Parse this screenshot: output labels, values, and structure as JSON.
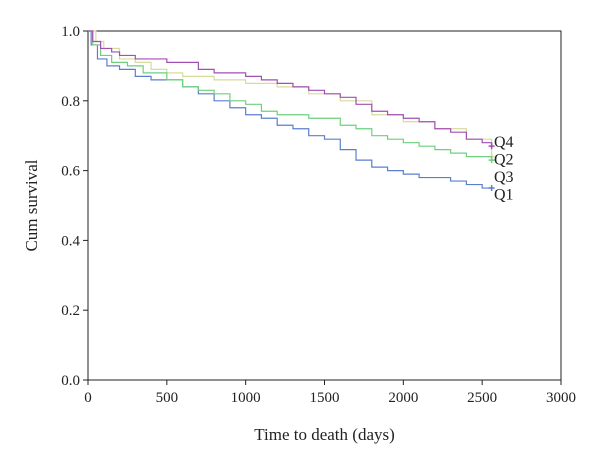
{
  "chart_data": {
    "type": "line",
    "xlabel": "Time to death (days)",
    "ylabel": "Cum survival",
    "xlim": [
      0,
      3000
    ],
    "ylim": [
      0,
      1.0
    ],
    "xticks": [
      0,
      500,
      1000,
      1500,
      2000,
      2500,
      3000
    ],
    "yticks": [
      0.0,
      0.2,
      0.4,
      0.6,
      0.8,
      1.0
    ],
    "xtick_labels": [
      "0",
      "500",
      "1000",
      "1500",
      "2000",
      "2500",
      "3000"
    ],
    "ytick_labels": [
      "0.0",
      "0.2",
      "0.4",
      "0.6",
      "0.8",
      "1.0"
    ],
    "grid": false,
    "series": [
      {
        "name": "Q1",
        "color": "#5b7fce",
        "x": [
          0,
          20,
          60,
          120,
          200,
          300,
          400,
          500,
          600,
          700,
          800,
          900,
          1000,
          1100,
          1200,
          1300,
          1400,
          1500,
          1600,
          1700,
          1800,
          1900,
          2000,
          2100,
          2200,
          2300,
          2400,
          2500,
          2560
        ],
        "y": [
          1.0,
          0.96,
          0.92,
          0.9,
          0.89,
          0.87,
          0.86,
          0.86,
          0.84,
          0.82,
          0.8,
          0.78,
          0.76,
          0.75,
          0.73,
          0.72,
          0.7,
          0.69,
          0.66,
          0.63,
          0.61,
          0.6,
          0.59,
          0.58,
          0.58,
          0.57,
          0.56,
          0.55,
          0.55
        ]
      },
      {
        "name": "Q2",
        "color": "#d6dc9e",
        "x": [
          0,
          50,
          100,
          200,
          300,
          400,
          500,
          600,
          800,
          1000,
          1200,
          1400,
          1600,
          1800,
          2000,
          2200,
          2400,
          2560
        ],
        "y": [
          1.0,
          0.97,
          0.95,
          0.92,
          0.91,
          0.89,
          0.88,
          0.87,
          0.86,
          0.85,
          0.84,
          0.82,
          0.8,
          0.76,
          0.74,
          0.72,
          0.69,
          0.64
        ]
      },
      {
        "name": "Q3",
        "color": "#6fcf7f",
        "x": [
          0,
          30,
          80,
          150,
          250,
          350,
          500,
          600,
          700,
          800,
          900,
          1000,
          1100,
          1200,
          1300,
          1400,
          1500,
          1600,
          1700,
          1800,
          1900,
          2000,
          2100,
          2200,
          2300,
          2400,
          2560
        ],
        "y": [
          1.0,
          0.96,
          0.93,
          0.91,
          0.9,
          0.88,
          0.86,
          0.84,
          0.83,
          0.82,
          0.8,
          0.79,
          0.77,
          0.76,
          0.76,
          0.75,
          0.75,
          0.73,
          0.72,
          0.7,
          0.69,
          0.68,
          0.67,
          0.66,
          0.65,
          0.64,
          0.63
        ]
      },
      {
        "name": "Q4",
        "color": "#a24fb3",
        "x": [
          0,
          30,
          80,
          150,
          200,
          250,
          300,
          400,
          500,
          600,
          700,
          800,
          900,
          1000,
          1100,
          1200,
          1300,
          1400,
          1500,
          1600,
          1700,
          1800,
          1900,
          2000,
          2100,
          2200,
          2300,
          2400,
          2500,
          2560
        ],
        "y": [
          1.0,
          0.97,
          0.95,
          0.94,
          0.93,
          0.93,
          0.92,
          0.92,
          0.91,
          0.91,
          0.89,
          0.88,
          0.88,
          0.87,
          0.86,
          0.85,
          0.84,
          0.83,
          0.82,
          0.81,
          0.79,
          0.77,
          0.76,
          0.75,
          0.74,
          0.72,
          0.71,
          0.69,
          0.68,
          0.67
        ]
      }
    ],
    "series_label_order": [
      "Q4",
      "Q2",
      "Q3",
      "Q1"
    ]
  }
}
